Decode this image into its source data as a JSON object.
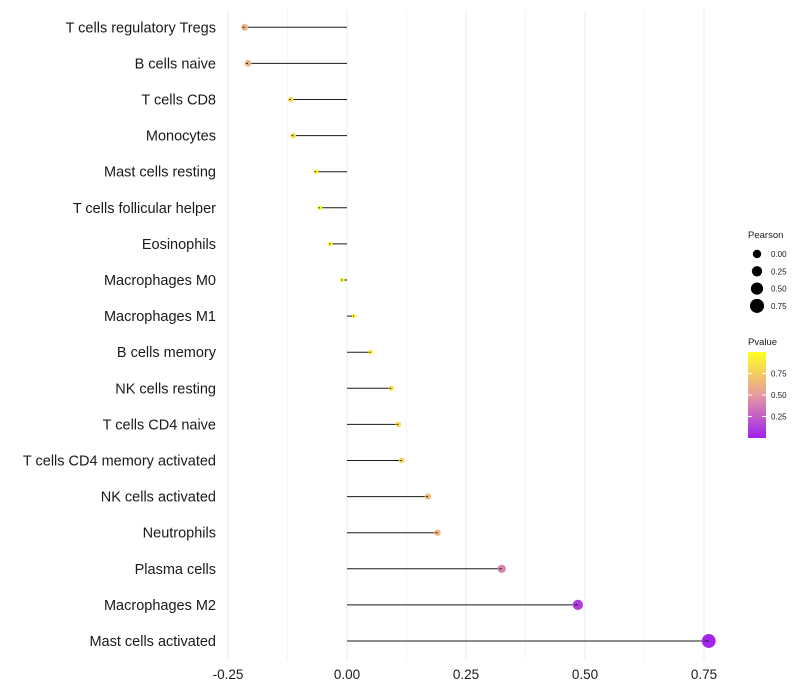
{
  "chart_data": {
    "type": "lollipop",
    "categories": [
      "T cells regulatory  Tregs",
      "B cells naive",
      "T cells CD8",
      "Monocytes",
      "Mast cells resting",
      "T cells follicular helper",
      "Eosinophils",
      "Macrophages M0",
      "Macrophages M1",
      "B cells memory",
      "NK cells resting",
      "T cells CD4 naive",
      "T cells CD4 memory activated",
      "NK cells activated",
      "Neutrophils",
      "Plasma cells",
      "Macrophages M2",
      "Mast cells activated"
    ],
    "values": [
      -0.215,
      -0.208,
      -0.118,
      -0.113,
      -0.065,
      -0.057,
      -0.035,
      -0.01,
      0.015,
      0.05,
      0.093,
      0.108,
      0.115,
      0.17,
      0.19,
      0.325,
      0.485,
      0.76
    ],
    "pvalues": [
      0.62,
      0.62,
      0.82,
      0.82,
      0.95,
      0.97,
      0.98,
      0.99,
      1.0,
      0.96,
      0.85,
      0.82,
      0.81,
      0.68,
      0.65,
      0.4,
      0.12,
      0.02
    ],
    "xlim": [
      -0.25,
      0.75
    ],
    "xticks": [
      -0.25,
      0.0,
      0.25,
      0.5,
      0.75
    ],
    "xtick_labels": [
      "-0.25",
      "0.00",
      "0.25",
      "0.50",
      "0.75"
    ],
    "xlabel": "",
    "ylabel": "",
    "grid": true,
    "legend": {
      "size_title": "Pearson",
      "size_values": [
        0.0,
        0.25,
        0.5,
        0.75
      ],
      "size_labels": [
        "0.00",
        "0.25",
        "0.50",
        "0.75"
      ],
      "color_title": "Pvalue",
      "color_values": [
        0.75,
        0.5,
        0.25
      ],
      "color_labels": [
        "0.75",
        "0.50",
        "0.25"
      ],
      "color_low": "#A020F0",
      "color_mid": "#E79AA0",
      "color_high": "#FFFF20",
      "placement": "right"
    }
  }
}
